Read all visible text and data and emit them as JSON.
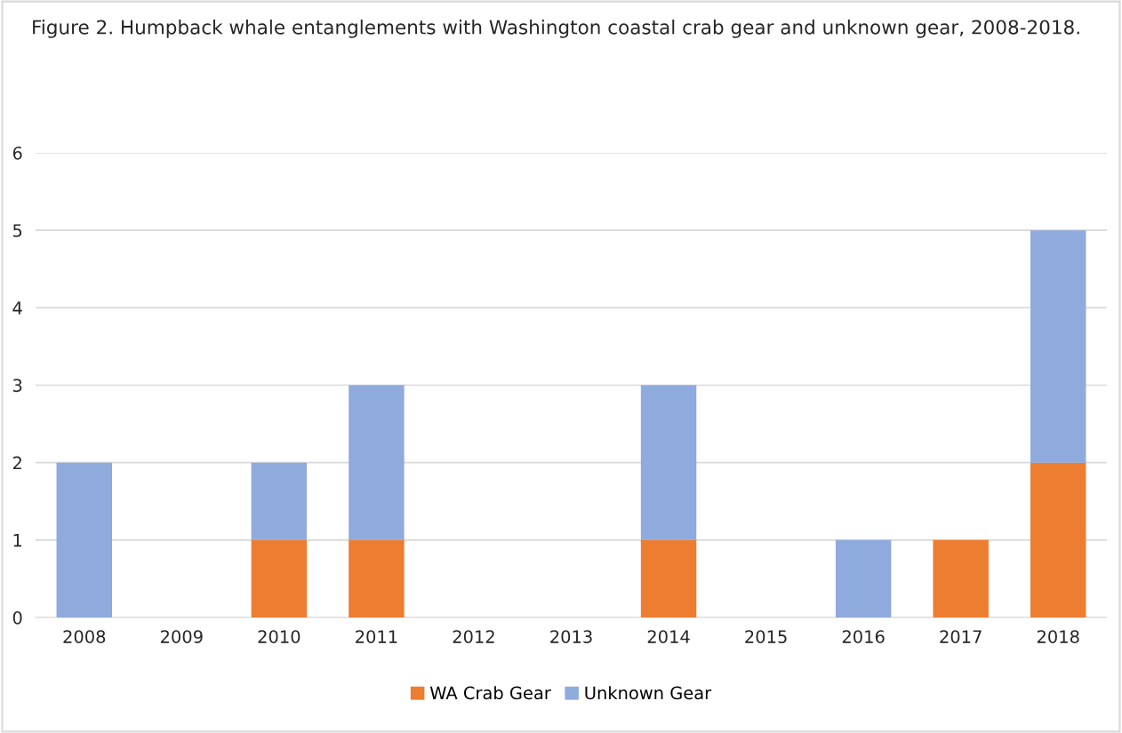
{
  "chart_data": {
    "type": "bar",
    "title": "Figure 2. Humpback whale entanglements with Washington coastal crab gear and unknown gear, 2008-2018.",
    "categories": [
      "2008",
      "2009",
      "2010",
      "2011",
      "2012",
      "2013",
      "2014",
      "2015",
      "2016",
      "2017",
      "2018"
    ],
    "stacked": true,
    "series": [
      {
        "name": "WA Crab Gear",
        "color": "#ed7d31",
        "values": [
          0,
          0,
          1,
          1,
          0,
          0,
          1,
          0,
          0,
          1,
          2
        ]
      },
      {
        "name": "Unknown Gear",
        "color": "#8faadc",
        "values": [
          2,
          0,
          1,
          2,
          0,
          0,
          2,
          0,
          1,
          0,
          3
        ]
      }
    ],
    "ylim": [
      0,
      6
    ],
    "yticks": [
      0,
      1,
      2,
      3,
      4,
      5,
      6
    ],
    "grid": "y",
    "legend": "bottom"
  }
}
